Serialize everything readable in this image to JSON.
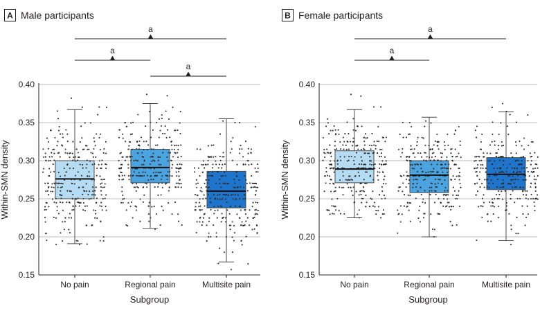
{
  "chart_data": [
    {
      "type": "box",
      "panel_letter": "A",
      "title": "Male participants",
      "xlabel": "Subgroup",
      "ylabel": "Within-SMN density",
      "ylim": [
        0.15,
        0.4
      ],
      "yticks": [
        "0.40",
        "0.35",
        "0.30",
        "0.25",
        "0.20",
        "0.15"
      ],
      "categories": [
        "No pain",
        "Regional pain",
        "Multisite pain"
      ],
      "colors": [
        "#b5dcf3",
        "#4ba3e0",
        "#1f74cc"
      ],
      "boxes": [
        {
          "whisker_low": 0.191,
          "q1": 0.25,
          "median": 0.276,
          "q3": 0.3,
          "whisker_high": 0.367,
          "points_min": 0.19,
          "points_max": 0.382,
          "n_points": 300
        },
        {
          "whisker_low": 0.211,
          "q1": 0.271,
          "median": 0.291,
          "q3": 0.315,
          "whisker_high": 0.375,
          "points_min": 0.21,
          "points_max": 0.387,
          "n_points": 300
        },
        {
          "whisker_low": 0.167,
          "q1": 0.238,
          "median": 0.26,
          "q3": 0.286,
          "whisker_high": 0.355,
          "points_min": 0.157,
          "points_max": 0.352,
          "n_points": 300
        }
      ],
      "significance": [
        {
          "from": 0,
          "to": 2,
          "label": "a"
        },
        {
          "from": 0,
          "to": 1,
          "label": "a"
        },
        {
          "from": 1,
          "to": 2,
          "label": "a"
        }
      ]
    },
    {
      "type": "box",
      "panel_letter": "B",
      "title": "Female participants",
      "xlabel": "Subgroup",
      "ylabel": "Within-SMN density",
      "ylim": [
        0.15,
        0.4
      ],
      "yticks": [
        "0.40",
        "0.35",
        "0.30",
        "0.25",
        "0.20",
        "0.15"
      ],
      "categories": [
        "No pain",
        "Regional pain",
        "Multisite pain"
      ],
      "colors": [
        "#b5dcf3",
        "#4ba3e0",
        "#1f74cc"
      ],
      "boxes": [
        {
          "whisker_low": 0.225,
          "q1": 0.271,
          "median": 0.289,
          "q3": 0.313,
          "whisker_high": 0.367,
          "points_min": 0.225,
          "points_max": 0.387,
          "n_points": 300
        },
        {
          "whisker_low": 0.2,
          "q1": 0.258,
          "median": 0.281,
          "q3": 0.3,
          "whisker_high": 0.357,
          "points_min": 0.2,
          "points_max": 0.352,
          "n_points": 300
        },
        {
          "whisker_low": 0.195,
          "q1": 0.262,
          "median": 0.282,
          "q3": 0.304,
          "whisker_high": 0.364,
          "points_min": 0.19,
          "points_max": 0.375,
          "n_points": 300
        }
      ],
      "significance": [
        {
          "from": 0,
          "to": 2,
          "label": "a"
        },
        {
          "from": 0,
          "to": 1,
          "label": "a"
        }
      ]
    }
  ]
}
